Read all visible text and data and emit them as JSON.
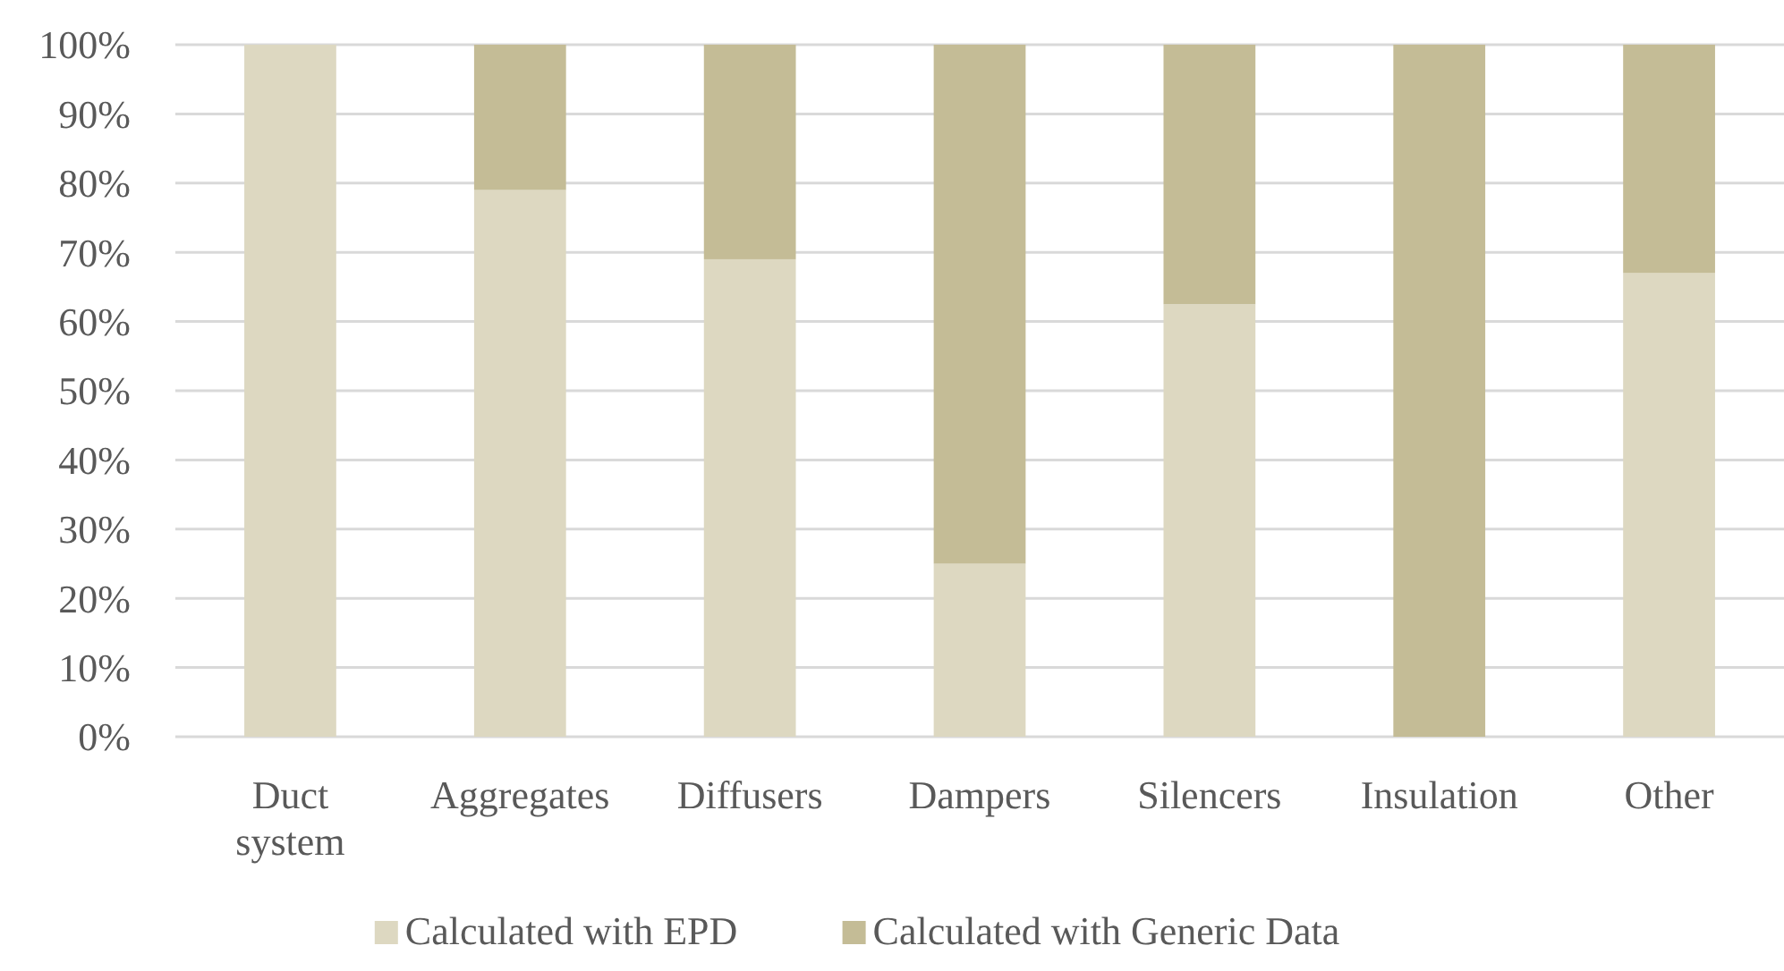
{
  "chart_data": {
    "type": "bar",
    "stacked": true,
    "categories": [
      "Duct system",
      "Aggregates",
      "Diffusers",
      "Dampers",
      "Silencers",
      "Insulation",
      "Other"
    ],
    "series": [
      {
        "name": "Calculated with EPD",
        "color": "#ddd8c1",
        "values": [
          100,
          79,
          69,
          25,
          62.5,
          0,
          67
        ]
      },
      {
        "name": "Calculated with Generic Data",
        "color": "#c4bc96",
        "values": [
          0,
          21,
          31,
          75,
          37.5,
          100,
          33
        ]
      }
    ],
    "ylim": [
      0,
      100
    ],
    "yticks": [
      {
        "value": 0,
        "label": "0%"
      },
      {
        "value": 10,
        "label": "10%"
      },
      {
        "value": 20,
        "label": "20%"
      },
      {
        "value": 30,
        "label": "30%"
      },
      {
        "value": 40,
        "label": "40%"
      },
      {
        "value": 50,
        "label": "50%"
      },
      {
        "value": 60,
        "label": "60%"
      },
      {
        "value": 70,
        "label": "70%"
      },
      {
        "value": 80,
        "label": "80%"
      },
      {
        "value": 90,
        "label": "90%"
      },
      {
        "value": 100,
        "label": "100%"
      }
    ],
    "grid": "y",
    "legend": "bottom"
  }
}
